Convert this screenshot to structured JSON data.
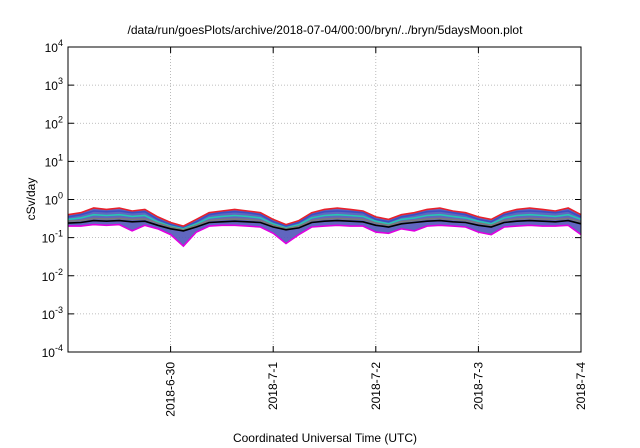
{
  "chart_data": {
    "type": "area",
    "title": "/data/run/goesPlots/archive/2018-07-04/00:00/bryn/../bryn/5daysMoon.plot",
    "xlabel": "Coordinated Universal Time (UTC)",
    "ylabel": "cSv/day",
    "yscale": "log",
    "ylim": [
      0.0001,
      10000
    ],
    "ytick_exponents": [
      "-4",
      "-3",
      "-2",
      "-1",
      "0",
      "1",
      "2",
      "3",
      "4"
    ],
    "y_ticks": [
      0.0001,
      0.001,
      0.01,
      0.1,
      1,
      10,
      100,
      1000,
      10000
    ],
    "xlim": [
      "2018-06-29",
      "2018-07-04"
    ],
    "x_ticks": [
      {
        "date": "2018-06-30",
        "label": "2018-6-30"
      },
      {
        "date": "2018-07-01",
        "label": "2018-7-1"
      },
      {
        "date": "2018-07-02",
        "label": "2018-7-2"
      },
      {
        "date": "2018-07-03",
        "label": "2018-7-3"
      },
      {
        "date": "2018-07-04",
        "label": "2018-7-4"
      }
    ],
    "grid": true,
    "grid_style": "dotted",
    "series_colors": [
      "#e8202a",
      "#3b4fc4",
      "#26c6b4",
      "#7a7a7a",
      "#000000",
      "#e000e0"
    ],
    "band_fill_color": "#4f55b8",
    "x": [
      "06-29 00:00",
      "06-29 03:00",
      "06-29 06:00",
      "06-29 09:00",
      "06-29 12:00",
      "06-29 15:00",
      "06-29 18:00",
      "06-29 21:00",
      "06-30 00:00",
      "06-30 03:00",
      "06-30 06:00",
      "06-30 09:00",
      "06-30 12:00",
      "06-30 15:00",
      "06-30 18:00",
      "06-30 21:00",
      "07-01 00:00",
      "07-01 03:00",
      "07-01 06:00",
      "07-01 09:00",
      "07-01 12:00",
      "07-01 15:00",
      "07-01 18:00",
      "07-01 21:00",
      "07-02 00:00",
      "07-02 03:00",
      "07-02 06:00",
      "07-02 09:00",
      "07-02 12:00",
      "07-02 15:00",
      "07-02 18:00",
      "07-02 21:00",
      "07-03 00:00",
      "07-03 03:00",
      "07-03 06:00",
      "07-03 09:00",
      "07-03 12:00",
      "07-03 15:00",
      "07-03 18:00",
      "07-03 21:00",
      "07-04 00:00"
    ],
    "series": [
      {
        "values": [
          0.4,
          0.45,
          0.6,
          0.55,
          0.6,
          0.5,
          0.55,
          0.35,
          0.25,
          0.2,
          0.3,
          0.45,
          0.5,
          0.55,
          0.5,
          0.45,
          0.3,
          0.22,
          0.28,
          0.45,
          0.55,
          0.6,
          0.55,
          0.5,
          0.35,
          0.3,
          0.4,
          0.45,
          0.55,
          0.6,
          0.5,
          0.45,
          0.35,
          0.3,
          0.45,
          0.55,
          0.6,
          0.55,
          0.5,
          0.6,
          0.4
        ]
      },
      {
        "values": [
          0.35,
          0.4,
          0.5,
          0.48,
          0.5,
          0.45,
          0.48,
          0.3,
          0.22,
          0.18,
          0.26,
          0.4,
          0.45,
          0.48,
          0.45,
          0.4,
          0.26,
          0.2,
          0.25,
          0.4,
          0.48,
          0.5,
          0.48,
          0.45,
          0.3,
          0.26,
          0.35,
          0.4,
          0.48,
          0.5,
          0.45,
          0.4,
          0.3,
          0.26,
          0.4,
          0.48,
          0.5,
          0.48,
          0.45,
          0.5,
          0.35
        ]
      },
      {
        "values": [
          0.3,
          0.33,
          0.4,
          0.38,
          0.4,
          0.36,
          0.38,
          0.26,
          0.2,
          0.17,
          0.23,
          0.33,
          0.36,
          0.38,
          0.36,
          0.33,
          0.23,
          0.18,
          0.22,
          0.33,
          0.38,
          0.4,
          0.38,
          0.36,
          0.27,
          0.23,
          0.3,
          0.33,
          0.38,
          0.4,
          0.36,
          0.33,
          0.27,
          0.23,
          0.33,
          0.38,
          0.4,
          0.38,
          0.36,
          0.4,
          0.3
        ]
      },
      {
        "values": [
          0.27,
          0.28,
          0.32,
          0.31,
          0.32,
          0.3,
          0.31,
          0.24,
          0.19,
          0.16,
          0.21,
          0.28,
          0.3,
          0.31,
          0.3,
          0.28,
          0.21,
          0.17,
          0.2,
          0.28,
          0.31,
          0.32,
          0.31,
          0.3,
          0.24,
          0.21,
          0.26,
          0.28,
          0.31,
          0.32,
          0.3,
          0.28,
          0.24,
          0.21,
          0.28,
          0.31,
          0.32,
          0.31,
          0.3,
          0.32,
          0.26
        ]
      },
      {
        "values": [
          0.24,
          0.25,
          0.28,
          0.27,
          0.28,
          0.26,
          0.27,
          0.21,
          0.17,
          0.15,
          0.19,
          0.25,
          0.26,
          0.27,
          0.26,
          0.25,
          0.19,
          0.16,
          0.18,
          0.25,
          0.27,
          0.28,
          0.27,
          0.26,
          0.21,
          0.19,
          0.23,
          0.25,
          0.27,
          0.28,
          0.26,
          0.25,
          0.21,
          0.19,
          0.25,
          0.27,
          0.28,
          0.27,
          0.26,
          0.28,
          0.23
        ]
      },
      {
        "values": [
          0.2,
          0.2,
          0.22,
          0.21,
          0.22,
          0.15,
          0.21,
          0.17,
          0.12,
          0.06,
          0.14,
          0.2,
          0.21,
          0.21,
          0.2,
          0.19,
          0.13,
          0.07,
          0.12,
          0.19,
          0.2,
          0.21,
          0.2,
          0.2,
          0.14,
          0.13,
          0.17,
          0.15,
          0.2,
          0.21,
          0.2,
          0.19,
          0.14,
          0.12,
          0.19,
          0.2,
          0.21,
          0.2,
          0.2,
          0.21,
          0.12
        ]
      }
    ]
  }
}
